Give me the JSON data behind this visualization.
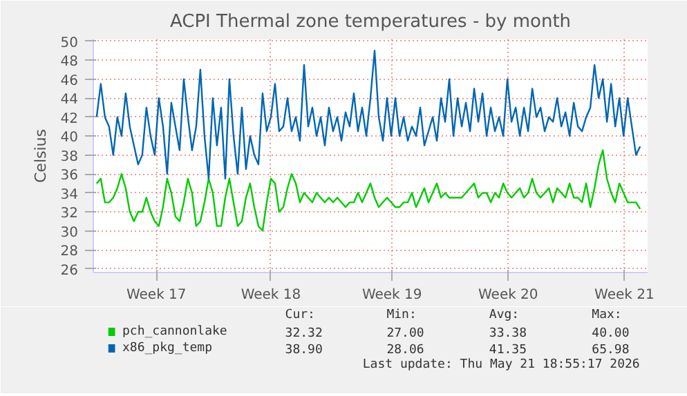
{
  "chart_data": {
    "type": "line",
    "title": "ACPI Thermal zone temperatures - by month",
    "ylabel": "Celsius",
    "x": [
      "2026-04-19T00:00",
      "2026-04-19T06:00",
      "2026-04-19T12:00",
      "2026-04-19T18:00",
      "2026-04-20T00:00",
      "2026-04-20T06:00",
      "2026-04-20T12:00",
      "2026-04-20T18:00",
      "2026-04-21T00:00",
      "2026-04-21T06:00",
      "2026-04-21T12:00",
      "2026-04-21T18:00",
      "2026-04-22T00:00",
      "2026-04-22T06:00",
      "2026-04-22T12:00",
      "2026-04-22T18:00",
      "2026-04-23T00:00",
      "2026-04-23T06:00",
      "2026-04-23T12:00",
      "2026-04-23T18:00",
      "2026-04-24T00:00",
      "2026-04-24T06:00",
      "2026-04-24T12:00",
      "2026-04-24T18:00",
      "2026-04-25T00:00",
      "2026-04-25T06:00",
      "2026-04-25T12:00",
      "2026-04-25T18:00",
      "2026-04-26T00:00",
      "2026-04-26T06:00",
      "2026-04-26T12:00",
      "2026-04-26T18:00",
      "2026-04-27T00:00",
      "2026-04-27T06:00",
      "2026-04-27T12:00",
      "2026-04-27T18:00",
      "2026-04-28T00:00",
      "2026-04-28T06:00",
      "2026-04-28T12:00",
      "2026-04-28T18:00",
      "2026-04-29T00:00",
      "2026-04-29T06:00",
      "2026-04-29T12:00",
      "2026-04-29T18:00",
      "2026-04-30T00:00",
      "2026-04-30T06:00",
      "2026-04-30T12:00",
      "2026-04-30T18:00",
      "2026-05-01T00:00",
      "2026-05-01T06:00",
      "2026-05-01T12:00",
      "2026-05-01T18:00",
      "2026-05-02T00:00",
      "2026-05-02T06:00",
      "2026-05-02T12:00",
      "2026-05-02T18:00",
      "2026-05-03T00:00",
      "2026-05-03T06:00",
      "2026-05-03T12:00",
      "2026-05-03T18:00",
      "2026-05-04T00:00",
      "2026-05-04T06:00",
      "2026-05-04T12:00",
      "2026-05-04T18:00",
      "2026-05-05T00:00",
      "2026-05-05T06:00",
      "2026-05-05T12:00",
      "2026-05-05T18:00",
      "2026-05-06T00:00",
      "2026-05-06T06:00",
      "2026-05-06T12:00",
      "2026-05-06T18:00",
      "2026-05-07T00:00",
      "2026-05-07T06:00",
      "2026-05-07T12:00",
      "2026-05-07T18:00",
      "2026-05-08T00:00",
      "2026-05-08T06:00",
      "2026-05-08T12:00",
      "2026-05-08T18:00",
      "2026-05-09T00:00",
      "2026-05-09T06:00",
      "2026-05-09T12:00",
      "2026-05-09T18:00",
      "2026-05-10T00:00",
      "2026-05-10T06:00",
      "2026-05-10T12:00",
      "2026-05-10T18:00",
      "2026-05-11T00:00",
      "2026-05-11T06:00",
      "2026-05-11T12:00",
      "2026-05-11T18:00",
      "2026-05-12T00:00",
      "2026-05-12T06:00",
      "2026-05-12T12:00",
      "2026-05-12T18:00",
      "2026-05-13T00:00",
      "2026-05-13T06:00",
      "2026-05-13T12:00",
      "2026-05-13T18:00",
      "2026-05-14T00:00",
      "2026-05-14T06:00",
      "2026-05-14T12:00",
      "2026-05-14T18:00",
      "2026-05-15T00:00",
      "2026-05-15T06:00",
      "2026-05-15T12:00",
      "2026-05-15T18:00",
      "2026-05-16T00:00",
      "2026-05-16T06:00",
      "2026-05-16T12:00",
      "2026-05-16T18:00",
      "2026-05-17T00:00",
      "2026-05-17T06:00",
      "2026-05-17T12:00",
      "2026-05-17T18:00",
      "2026-05-18T00:00",
      "2026-05-18T06:00",
      "2026-05-18T12:00",
      "2026-05-18T18:00",
      "2026-05-19T00:00",
      "2026-05-19T06:00",
      "2026-05-19T12:00",
      "2026-05-19T18:00",
      "2026-05-20T00:00",
      "2026-05-20T06:00",
      "2026-05-20T12:00",
      "2026-05-20T18:00",
      "2026-05-21T00:00",
      "2026-05-21T06:00",
      "2026-05-21T12:00",
      "2026-05-21T18:00"
    ],
    "series": [
      {
        "name": "pch_cannonlake",
        "color": "#00cc00",
        "values": [
          35,
          35.5,
          33,
          33,
          33.5,
          34.5,
          36,
          34.5,
          32,
          31,
          32,
          32,
          33.5,
          32,
          31,
          30.5,
          32.5,
          35.5,
          34,
          31.5,
          31,
          33,
          35.5,
          34,
          30.5,
          31,
          33,
          35.5,
          34,
          30.5,
          30.5,
          33.5,
          35.5,
          33,
          30.5,
          31,
          33.5,
          35,
          32.5,
          30.5,
          30,
          33,
          35.5,
          35,
          32,
          32.5,
          34.5,
          36,
          35,
          33,
          34,
          33.5,
          33,
          34,
          33.5,
          33,
          33.5,
          33,
          33.5,
          33,
          32.5,
          33,
          33,
          34,
          33,
          34,
          35,
          33.5,
          32.5,
          33,
          33.5,
          33,
          32.5,
          32.5,
          33,
          33,
          34,
          32.5,
          33.5,
          34.5,
          33,
          34,
          35,
          33.5,
          34,
          33.5,
          33.5,
          33.5,
          33.5,
          34,
          34.5,
          35,
          33.5,
          34,
          34,
          33,
          34,
          33.5,
          35,
          34,
          33.5,
          34,
          34.5,
          33.5,
          34,
          35.5,
          34,
          33.5,
          34,
          34.5,
          33,
          34.5,
          34,
          33.5,
          35,
          33.5,
          33.5,
          33,
          35,
          32.5,
          34.5,
          37,
          38.5,
          35.5,
          34,
          33,
          35,
          34,
          33,
          33,
          33,
          32.3
        ]
      },
      {
        "name": "x86_pkg_temp",
        "color": "#0066b3",
        "values": [
          42,
          45.5,
          42,
          41,
          38,
          42,
          40,
          44.5,
          41,
          39,
          37,
          38,
          43,
          40,
          38,
          44,
          41,
          36,
          43.5,
          41,
          38.5,
          46,
          42,
          38.5,
          41,
          47,
          40,
          35.5,
          44,
          39,
          43,
          35.5,
          46,
          40,
          36,
          43,
          36.5,
          40,
          38,
          37,
          44.5,
          40.5,
          42,
          45.5,
          40.5,
          41,
          44,
          40.5,
          42,
          39.5,
          47.5,
          41,
          43,
          40,
          42,
          39,
          43,
          40.5,
          42,
          39.5,
          42.5,
          41,
          44.5,
          40.5,
          43,
          40,
          44,
          49,
          42,
          39.5,
          44,
          40,
          44,
          40,
          42,
          39.5,
          41,
          40,
          43,
          39,
          40.5,
          42,
          39.5,
          44,
          41.5,
          46,
          40,
          44,
          41,
          43.5,
          40.5,
          45,
          41.5,
          44.5,
          40,
          43,
          40.5,
          42,
          40,
          46,
          41.5,
          43,
          40,
          43,
          40.5,
          45,
          42,
          43,
          40.5,
          42,
          41.5,
          44,
          41,
          42.5,
          40,
          43.5,
          41,
          40.5,
          42,
          43,
          47.5,
          44,
          46,
          41.5,
          45.5,
          41,
          44,
          40,
          44,
          41,
          38,
          38.9
        ]
      }
    ],
    "xlim": [
      "2026-04-18T19:12",
      "2026-05-22T04:48"
    ],
    "xticks": [
      {
        "value": "2026-04-22T14:24",
        "label": "Week 17"
      },
      {
        "value": "2026-04-29T12:00",
        "label": "Week 18"
      },
      {
        "value": "2026-05-06T19:12",
        "label": "Week 19"
      },
      {
        "value": "2026-05-13T19:12",
        "label": "Week 20"
      },
      {
        "value": "2026-05-20T19:12",
        "label": "Week 21"
      }
    ],
    "ylim": [
      25.6,
      50.2
    ],
    "yticks": [
      26,
      28,
      30,
      32,
      34,
      36,
      38,
      40,
      42,
      44,
      46,
      48,
      50
    ],
    "grid": true,
    "legend": "bottom",
    "line_style": "solid",
    "annotations": [
      "Cur:",
      "Min:",
      "Avg:",
      "Max:",
      "32.32",
      "27.00",
      "33.38",
      "40.00",
      "38.90",
      "28.06",
      "41.35",
      "65.98",
      "Last update: Thu May 21 18:55:17 2026"
    ]
  }
}
